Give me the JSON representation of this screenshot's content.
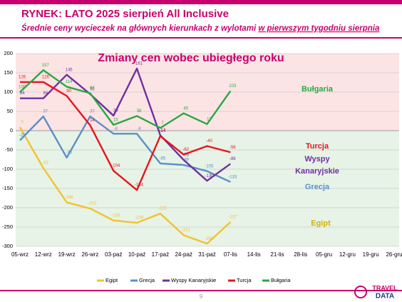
{
  "chart_data": {
    "type": "line",
    "header": "RYNEK: LATO 2025 sierpień All Inclusive",
    "subtitle": "Średnie ceny wycieczek na głównych kierunkach z wylotami ",
    "subtitle_underlined": "w pierwszym tygodniu sierpnia",
    "title": "Zmiany cen wobec ubiegłego roku",
    "categories": [
      "05-wrz",
      "12-wrz",
      "19-wrz",
      "26-wrz",
      "03-paź",
      "10-paź",
      "17-paź",
      "24-paź",
      "31-paź",
      "07-lis",
      "14-lis",
      "21-lis",
      "28-lis",
      "05-gru",
      "12-gru",
      "19-gru",
      "26-gru"
    ],
    "ylim": [
      -300,
      200
    ],
    "yticks": [
      -300,
      -250,
      -200,
      -150,
      -100,
      -50,
      0,
      50,
      100,
      150,
      200
    ],
    "grid": true,
    "legend": "bottom",
    "series": [
      {
        "name": "Egipt",
        "color": "#f2c230",
        "values": [
          9,
          -97,
          -186,
          -202,
          -233,
          -239,
          -215,
          -271,
          -293,
          -237,
          null,
          null,
          null,
          null,
          null,
          null,
          null
        ]
      },
      {
        "name": "Grecja",
        "color": "#5b8fc7",
        "values": [
          -25,
          37,
          -70,
          37,
          -8,
          -8,
          -85,
          -89,
          -105,
          -133,
          null,
          null,
          null,
          null,
          null,
          null,
          null
        ]
      },
      {
        "name": "Wyspy Kanaryjskie",
        "color": "#7030a0",
        "values": [
          84,
          84,
          145,
          95,
          39,
          161,
          -12,
          -76,
          -130,
          -86,
          null,
          null,
          null,
          null,
          null,
          null,
          null
        ]
      },
      {
        "name": "Turcja",
        "color": "#e8141e",
        "values": [
          126,
          126,
          90,
          14,
          -104,
          -154,
          -14,
          -62,
          -40,
          -56,
          null,
          null,
          null,
          null,
          null,
          null,
          null
        ]
      },
      {
        "name": "Bułgaria",
        "color": "#27a844",
        "values": [
          100,
          157,
          114,
          97,
          15,
          38,
          7,
          45,
          17,
          103,
          null,
          null,
          null,
          null,
          null,
          null,
          null
        ]
      }
    ],
    "annotations": [
      {
        "text": "Bułgaria",
        "color": "#27a844"
      },
      {
        "text": "Turcja",
        "color": "#e8141e"
      },
      {
        "text": "Wyspy",
        "color": "#7030a0"
      },
      {
        "text": "Kanaryjskie",
        "color": "#7030a0"
      },
      {
        "text": "Grecja",
        "color": "#5b8fc7"
      },
      {
        "text": "Egipt",
        "color": "#d4b000"
      }
    ],
    "page_number": "9",
    "logo": [
      "TRAVEL",
      "DATA"
    ]
  }
}
